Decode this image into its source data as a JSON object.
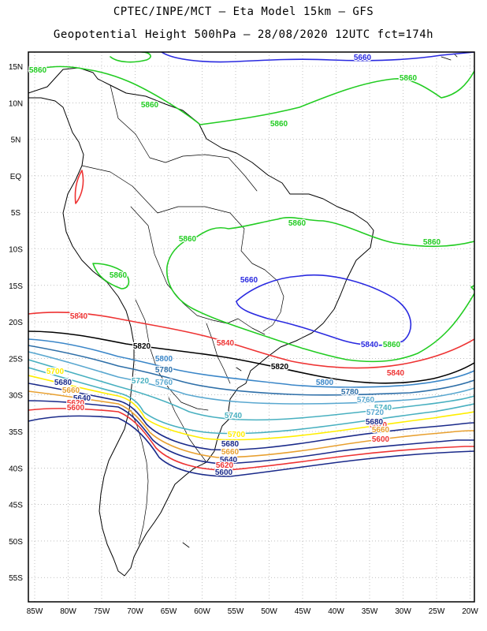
{
  "title_line1": "CPTEC/INPE/MCT –  Eta Model 15km – GFS",
  "title_line2": "Geopotential Height 500hPa – 28/08/2020 12UTC fct=174h",
  "lat_labels": [
    "15N",
    "10N",
    "5N",
    "EQ",
    "5S",
    "10S",
    "15S",
    "20S",
    "25S",
    "30S",
    "35S",
    "40S",
    "45S",
    "50S",
    "55S"
  ],
  "lon_labels": [
    "85W",
    "80W",
    "75W",
    "70W",
    "65W",
    "60W",
    "55W",
    "50W",
    "45W",
    "40W",
    "35W",
    "30W",
    "25W",
    "20W"
  ],
  "colors": {
    "c5660": "#2a2ae0",
    "c5860": "#22cc22",
    "c5840": "#ee3333",
    "c5820": "#000000",
    "c5800": "#3a86c8",
    "c5780": "#2e6fa8",
    "c5760": "#5aa8d0",
    "c5740": "#48b0c0",
    "c5720": "#ffee00",
    "c5700": "#e8a030",
    "c5680": "#1a2a8a",
    "coast": "#000000"
  },
  "contour_labels": [
    {
      "text": "5660",
      "color": "c5660"
    },
    {
      "text": "5860",
      "color": "c5860"
    },
    {
      "text": "5860",
      "color": "c5860"
    },
    {
      "text": "5860",
      "color": "c5860"
    },
    {
      "text": "5860",
      "color": "c5860"
    },
    {
      "text": "5860",
      "color": "c5860"
    },
    {
      "text": "5860",
      "color": "c5860"
    },
    {
      "text": "5860",
      "color": "c5860"
    },
    {
      "text": "5860",
      "color": "c5860"
    },
    {
      "text": "5860",
      "color": "c5860"
    },
    {
      "text": "5660",
      "color": "c5660"
    },
    {
      "text": "5840",
      "color": "c5660"
    },
    {
      "text": "5840",
      "color": "c5840"
    },
    {
      "text": "5840",
      "color": "c5840"
    },
    {
      "text": "5840",
      "color": "c5840"
    },
    {
      "text": "5820",
      "color": "c5820"
    },
    {
      "text": "5820",
      "color": "c5820"
    },
    {
      "text": "5800",
      "color": "c5800"
    },
    {
      "text": "5800",
      "color": "c5800"
    },
    {
      "text": "5780",
      "color": "c5780"
    },
    {
      "text": "5780",
      "color": "c5780"
    },
    {
      "text": "5760",
      "color": "c5760"
    },
    {
      "text": "5760",
      "color": "c5760"
    },
    {
      "text": "5740",
      "color": "c5740"
    },
    {
      "text": "5740",
      "color": "c5740"
    },
    {
      "text": "5720",
      "color": "c5740"
    },
    {
      "text": "5720",
      "color": "c5760"
    },
    {
      "text": "5700",
      "color": "c5720"
    },
    {
      "text": "5700",
      "color": "c5720"
    },
    {
      "text": "5680",
      "color": "c5680"
    },
    {
      "text": "5680",
      "color": "c5680"
    },
    {
      "text": "5660",
      "color": "c5700"
    },
    {
      "text": "5660",
      "color": "c5700"
    },
    {
      "text": "5640",
      "color": "c5680"
    },
    {
      "text": "5640",
      "color": "c5680"
    },
    {
      "text": "5620",
      "color": "c5840"
    },
    {
      "text": "5620",
      "color": "c5840"
    },
    {
      "text": "5600",
      "color": "c5840"
    },
    {
      "text": "5600",
      "color": "c5680"
    },
    {
      "text": "5620",
      "color": "c5840"
    },
    {
      "text": "5660",
      "color": "c5700"
    },
    {
      "text": "5680",
      "color": "c5680"
    },
    {
      "text": "5600",
      "color": "c5840"
    }
  ]
}
